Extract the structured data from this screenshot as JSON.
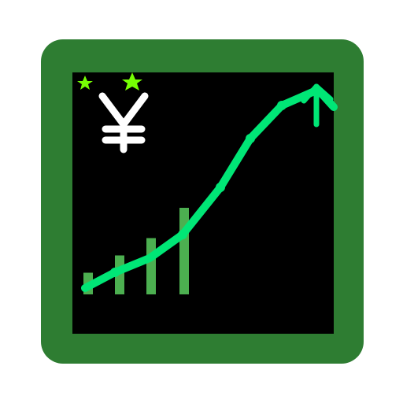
{
  "icon": {
    "name": "yen-growth-chart-icon",
    "symbol": "¥",
    "colors": {
      "frame": "#2e7d32",
      "screen": "#000000",
      "trend_line": "#00e676",
      "bars": "#4caf50",
      "stars": "#76ff03",
      "symbol": "#ffffff"
    },
    "bar_levels": [
      0.25,
      0.45,
      0.65,
      1.0
    ]
  }
}
